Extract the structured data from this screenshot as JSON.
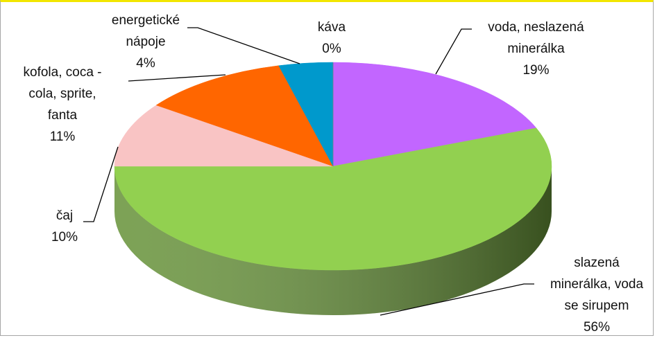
{
  "chart_data": {
    "type": "pie",
    "categories": [
      "voda, neslazená minerálka",
      "slazená minerálka, voda se sirupem",
      "čaj",
      "kofola, coca - cola, sprite, fanta",
      "energetické nápoje",
      "káva"
    ],
    "values": [
      19,
      56,
      10,
      11,
      4,
      0
    ],
    "value_labels": [
      "19%",
      "56%",
      "10%",
      "11%",
      "4%",
      "0%"
    ],
    "colors": [
      "#c266ff",
      "#92d050",
      "#f9c4c4",
      "#ff6600",
      "#0099cc",
      "#7f7f7f"
    ]
  }
}
